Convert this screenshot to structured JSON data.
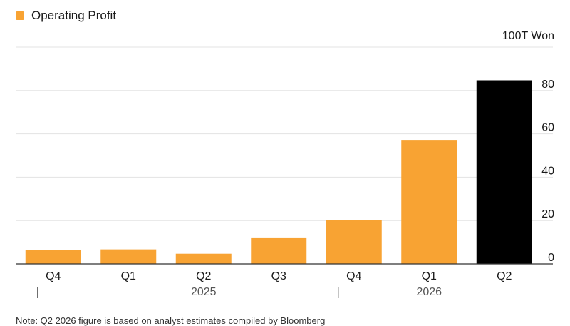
{
  "legend": {
    "label": "Operating Profit"
  },
  "unit_label": "100T Won",
  "colors": {
    "bar": "#f8a333",
    "highlight": "#000000",
    "grid": "#e3e3e3",
    "axis": "#333333"
  },
  "chart_data": {
    "type": "bar",
    "categories": [
      "Q4",
      "Q1",
      "Q2",
      "Q3",
      "Q4",
      "Q1",
      "Q2"
    ],
    "year_labels": [
      "2025",
      "2026"
    ],
    "series": [
      {
        "name": "Operating Profit",
        "values": [
          6.5,
          6.7,
          4.7,
          12.2,
          20.1,
          57.2,
          84.7
        ]
      }
    ],
    "highlight_index": 6,
    "ylabel": "100T Won",
    "yticks": [
      0,
      20,
      40,
      60,
      80
    ],
    "ylim": [
      0,
      100
    ],
    "grid": true,
    "legend_position": "top-left"
  },
  "note": "Note: Q2 2026 figure is based on analyst estimates compiled by Bloomberg"
}
